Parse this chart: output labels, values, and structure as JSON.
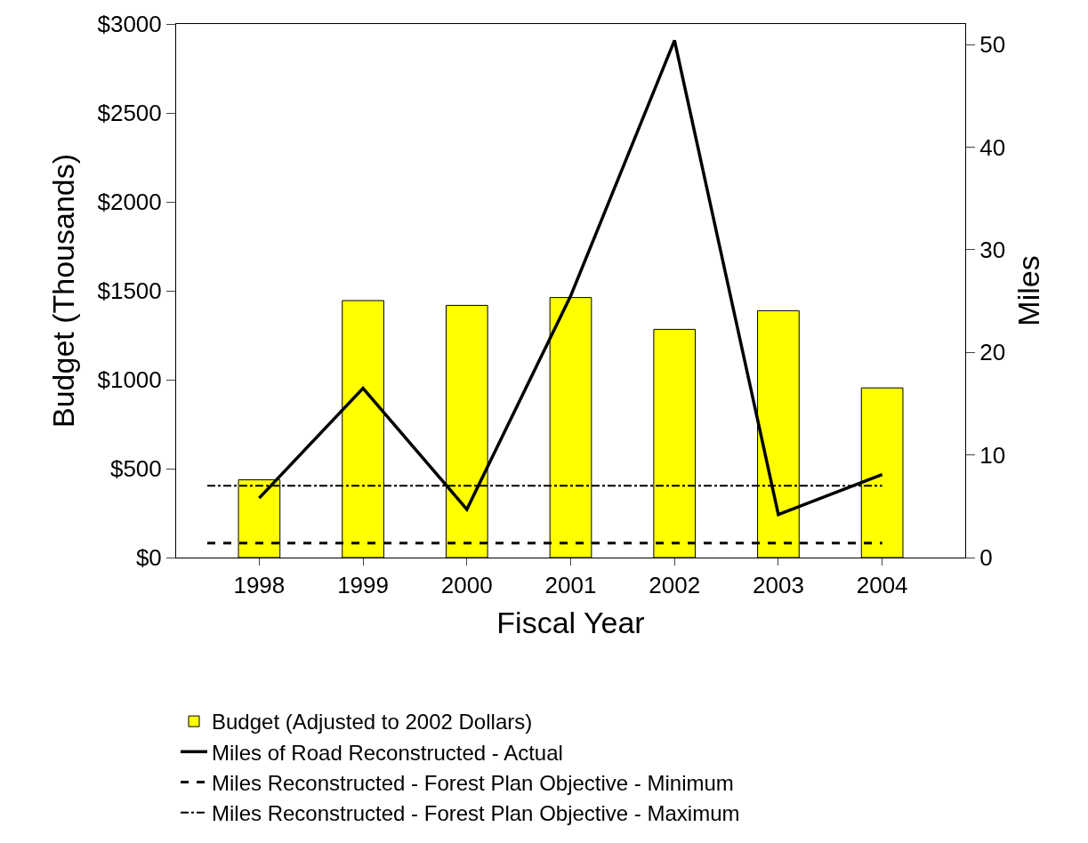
{
  "chart_data": {
    "type": "bar",
    "xlabel": "Fiscal Year",
    "ylabel": "Budget (Thousands)",
    "y2label": "Miles",
    "categories": [
      "1998",
      "1999",
      "2000",
      "2001",
      "2002",
      "2003",
      "2004"
    ],
    "series": [
      {
        "name": "Budget (Adjusted to 2002 Dollars)",
        "color": "#ffff00",
        "values": [
          437,
          1445,
          1418,
          1462,
          1283,
          1388,
          954
        ]
      },
      {
        "name": "Miles of Road Reconstructed - Actual",
        "type": "line",
        "axis": "y2",
        "color": "#000000",
        "line_style": "solid",
        "values": [
          5.8,
          16.5,
          4.7,
          25.5,
          50.4,
          4.2,
          8.1
        ]
      }
    ],
    "ref_lines": [
      {
        "axis": "y2",
        "value": 1.4,
        "label": "Miles Reconstructed - Forest Plan Objective - Minimum",
        "color": "#000000",
        "line_style": "dashed"
      },
      {
        "axis": "y2",
        "value": 7,
        "label": "Miles Reconstructed - Forest Plan Objective - Maximum",
        "color": "#000000",
        "line_style": "dashdot"
      }
    ],
    "ylim": [
      0,
      3000
    ],
    "yticks": [
      {
        "value": 0,
        "label": "$0"
      },
      {
        "value": 500,
        "label": "$500"
      },
      {
        "value": 1000,
        "label": "$1000"
      },
      {
        "value": 1500,
        "label": "$1500"
      },
      {
        "value": 2000,
        "label": "$2000"
      },
      {
        "value": 2500,
        "label": "$2500"
      },
      {
        "value": 3000,
        "label": "$3000"
      }
    ],
    "y2lim": [
      0,
      52
    ],
    "y2ticks": [
      0,
      10,
      20,
      30,
      40,
      50
    ],
    "legend": "bottom"
  }
}
